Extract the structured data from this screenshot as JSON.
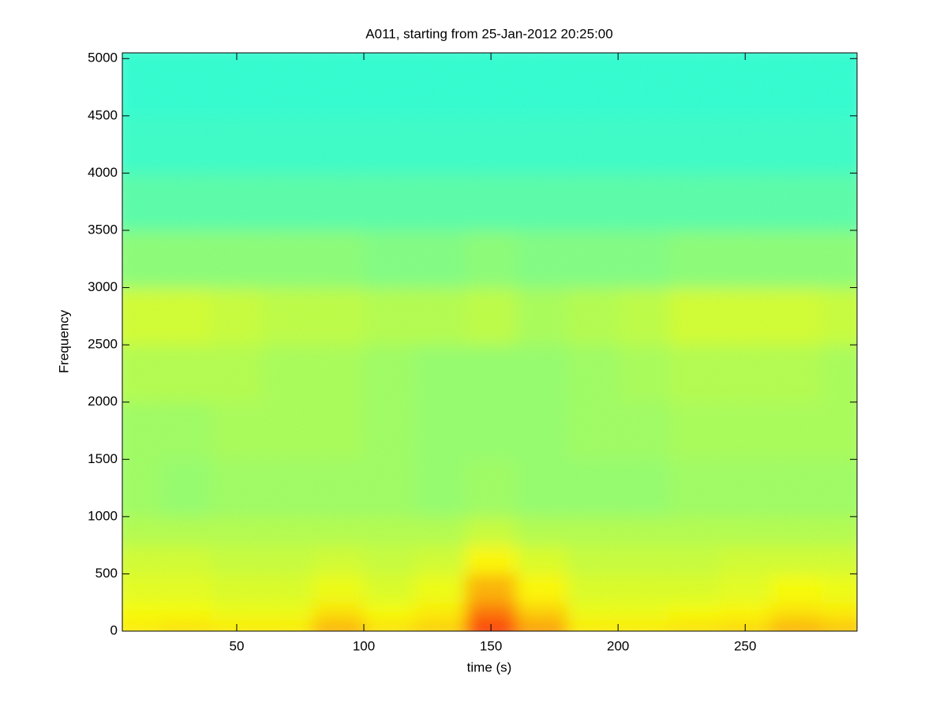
{
  "chart_data": {
    "type": "spectrogram",
    "title": "A011, starting from 25-Jan-2012 20:25:00",
    "xlabel": "time (s)",
    "ylabel": "Frequency",
    "xlim": [
      5,
      294
    ],
    "ylim": [
      0,
      5050
    ],
    "xticks": [
      50,
      100,
      150,
      200,
      250
    ],
    "yticks": [
      0,
      500,
      1000,
      1500,
      2000,
      2500,
      3000,
      3500,
      4000,
      4500,
      5000
    ],
    "colormap": "jet",
    "zlim": [
      0,
      1
    ],
    "x_edges": [
      5,
      20,
      40,
      60,
      80,
      100,
      120,
      140,
      160,
      180,
      200,
      220,
      240,
      260,
      280,
      294
    ],
    "y_edges": [
      0,
      100,
      250,
      500,
      750,
      1000,
      1500,
      2000,
      2500,
      3000,
      3500,
      4000,
      4500,
      5050
    ],
    "values": [
      [
        0.64,
        0.65,
        0.64,
        0.64,
        0.7,
        0.65,
        0.67,
        0.82,
        0.72,
        0.64,
        0.64,
        0.65,
        0.66,
        0.7,
        0.68
      ],
      [
        0.62,
        0.62,
        0.61,
        0.61,
        0.65,
        0.62,
        0.64,
        0.76,
        0.67,
        0.61,
        0.61,
        0.62,
        0.63,
        0.65,
        0.64
      ],
      [
        0.6,
        0.6,
        0.59,
        0.59,
        0.61,
        0.59,
        0.61,
        0.7,
        0.63,
        0.59,
        0.59,
        0.59,
        0.6,
        0.62,
        0.61
      ],
      [
        0.58,
        0.58,
        0.57,
        0.57,
        0.58,
        0.57,
        0.58,
        0.63,
        0.59,
        0.57,
        0.57,
        0.57,
        0.58,
        0.58,
        0.58
      ],
      [
        0.55,
        0.55,
        0.55,
        0.55,
        0.55,
        0.55,
        0.55,
        0.57,
        0.55,
        0.55,
        0.55,
        0.55,
        0.55,
        0.55,
        0.55
      ],
      [
        0.53,
        0.52,
        0.53,
        0.53,
        0.53,
        0.53,
        0.52,
        0.53,
        0.52,
        0.52,
        0.52,
        0.53,
        0.53,
        0.53,
        0.53
      ],
      [
        0.53,
        0.53,
        0.54,
        0.54,
        0.54,
        0.53,
        0.52,
        0.52,
        0.52,
        0.53,
        0.53,
        0.54,
        0.54,
        0.54,
        0.54
      ],
      [
        0.55,
        0.55,
        0.55,
        0.54,
        0.54,
        0.53,
        0.52,
        0.52,
        0.52,
        0.53,
        0.54,
        0.55,
        0.55,
        0.55,
        0.54
      ],
      [
        0.58,
        0.58,
        0.57,
        0.56,
        0.56,
        0.55,
        0.55,
        0.56,
        0.54,
        0.55,
        0.56,
        0.58,
        0.58,
        0.58,
        0.57
      ],
      [
        0.51,
        0.51,
        0.51,
        0.51,
        0.51,
        0.5,
        0.5,
        0.51,
        0.5,
        0.5,
        0.5,
        0.51,
        0.51,
        0.51,
        0.51
      ],
      [
        0.46,
        0.46,
        0.46,
        0.46,
        0.46,
        0.46,
        0.46,
        0.46,
        0.46,
        0.46,
        0.46,
        0.46,
        0.46,
        0.46,
        0.46
      ],
      [
        0.43,
        0.43,
        0.43,
        0.43,
        0.43,
        0.43,
        0.43,
        0.43,
        0.43,
        0.43,
        0.43,
        0.43,
        0.43,
        0.43,
        0.43
      ],
      [
        0.42,
        0.42,
        0.42,
        0.42,
        0.42,
        0.42,
        0.42,
        0.42,
        0.42,
        0.42,
        0.42,
        0.42,
        0.42,
        0.42,
        0.42
      ]
    ]
  }
}
